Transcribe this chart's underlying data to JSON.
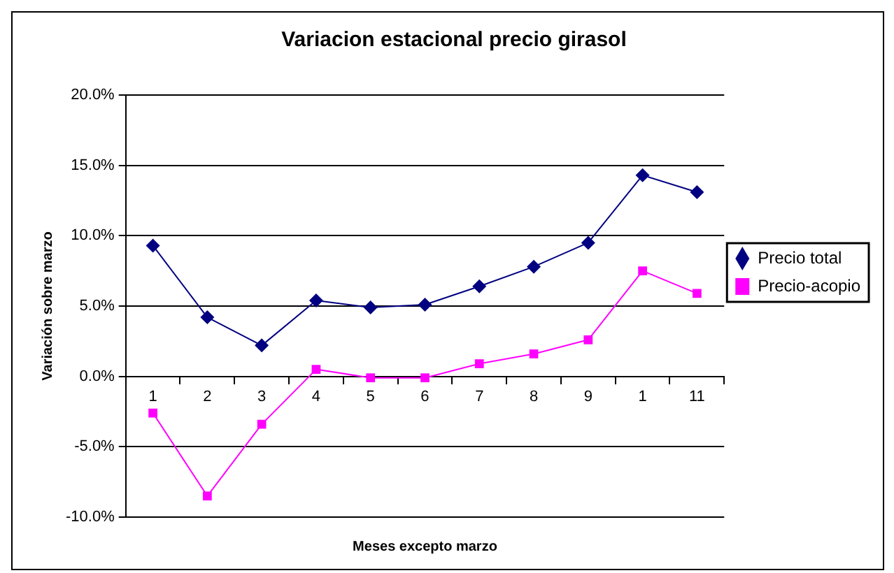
{
  "chart_data": {
    "type": "line",
    "title": "Variacion estacional precio girasol",
    "xlabel": "Meses excepto marzo",
    "ylabel": "Variación sobre marzo",
    "categories": [
      "1",
      "2",
      "3",
      "4",
      "5",
      "6",
      "7",
      "8",
      "9",
      "1",
      "11"
    ],
    "series": [
      {
        "name": "Precio total",
        "color": "#000080",
        "marker": "diamond",
        "values": [
          9.3,
          4.2,
          2.2,
          5.4,
          4.9,
          5.1,
          6.4,
          7.8,
          9.5,
          14.3,
          13.1
        ]
      },
      {
        "name": "Precio-acopio",
        "color": "#ff00ff",
        "marker": "square",
        "values": [
          -2.6,
          -8.5,
          -3.4,
          0.5,
          -0.1,
          -0.1,
          0.9,
          1.6,
          2.6,
          7.5,
          5.9
        ]
      }
    ],
    "ylim": [
      -10,
      20
    ],
    "yticks": [
      {
        "value": -10,
        "label": "-10.0%"
      },
      {
        "value": -5,
        "label": "-5.0%"
      },
      {
        "value": 0,
        "label": "0.0%"
      },
      {
        "value": 5,
        "label": "5.0%"
      },
      {
        "value": 10,
        "label": "10.0%"
      },
      {
        "value": 15,
        "label": "15.0%"
      },
      {
        "value": 20,
        "label": "20.0%"
      }
    ],
    "grid": "y",
    "legend": "right",
    "line_style": "solid"
  }
}
